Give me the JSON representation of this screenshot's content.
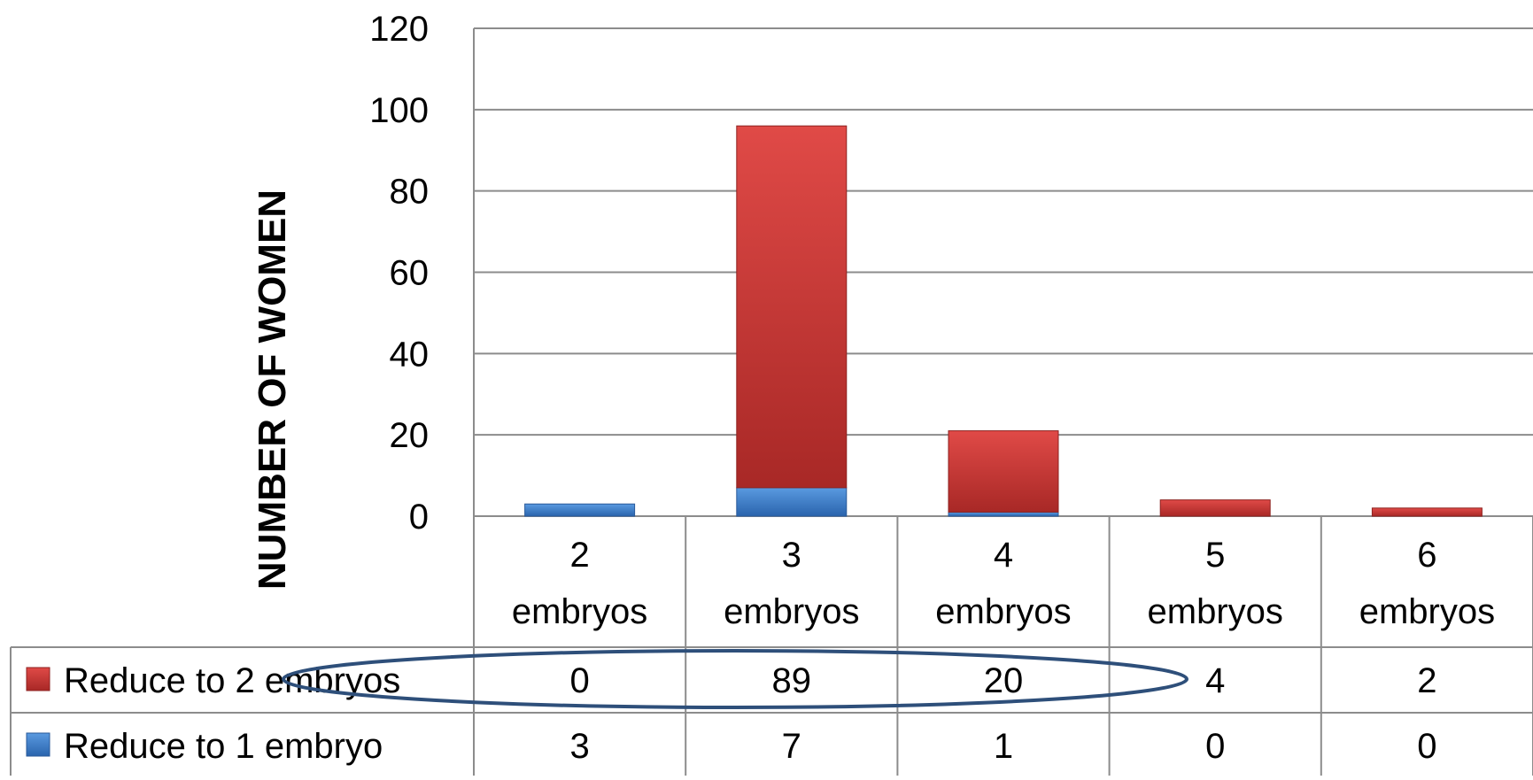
{
  "chart_data": {
    "type": "bar",
    "stacked": true,
    "categories": [
      "2 embryos",
      "3 embryos",
      "4 embryos",
      "5 embryos",
      "6 embryos"
    ],
    "category_lines": [
      [
        "2",
        "embryos"
      ],
      [
        "3",
        "embryos"
      ],
      [
        "4",
        "embryos"
      ],
      [
        "5",
        "embryos"
      ],
      [
        "6",
        "embryos"
      ]
    ],
    "series": [
      {
        "name": "Reduce to 1 embryo",
        "values": [
          3,
          7,
          1,
          0,
          0
        ],
        "color": "#3f7fc8"
      },
      {
        "name": "Reduce to 2 embryos",
        "values": [
          0,
          89,
          20,
          4,
          2
        ],
        "color": "#c93634"
      }
    ],
    "table_order": [
      1,
      0
    ],
    "ylabel": "NUMBER OF WOMEN",
    "ylim": [
      0,
      120
    ],
    "yticks": [
      0,
      20,
      40,
      60,
      80,
      100,
      120
    ],
    "grid": true,
    "legend": "data-table",
    "annotation": {
      "type": "ellipse",
      "highlights_row": "Reduce to 2 embryos",
      "color": "#2e4f7a"
    }
  }
}
